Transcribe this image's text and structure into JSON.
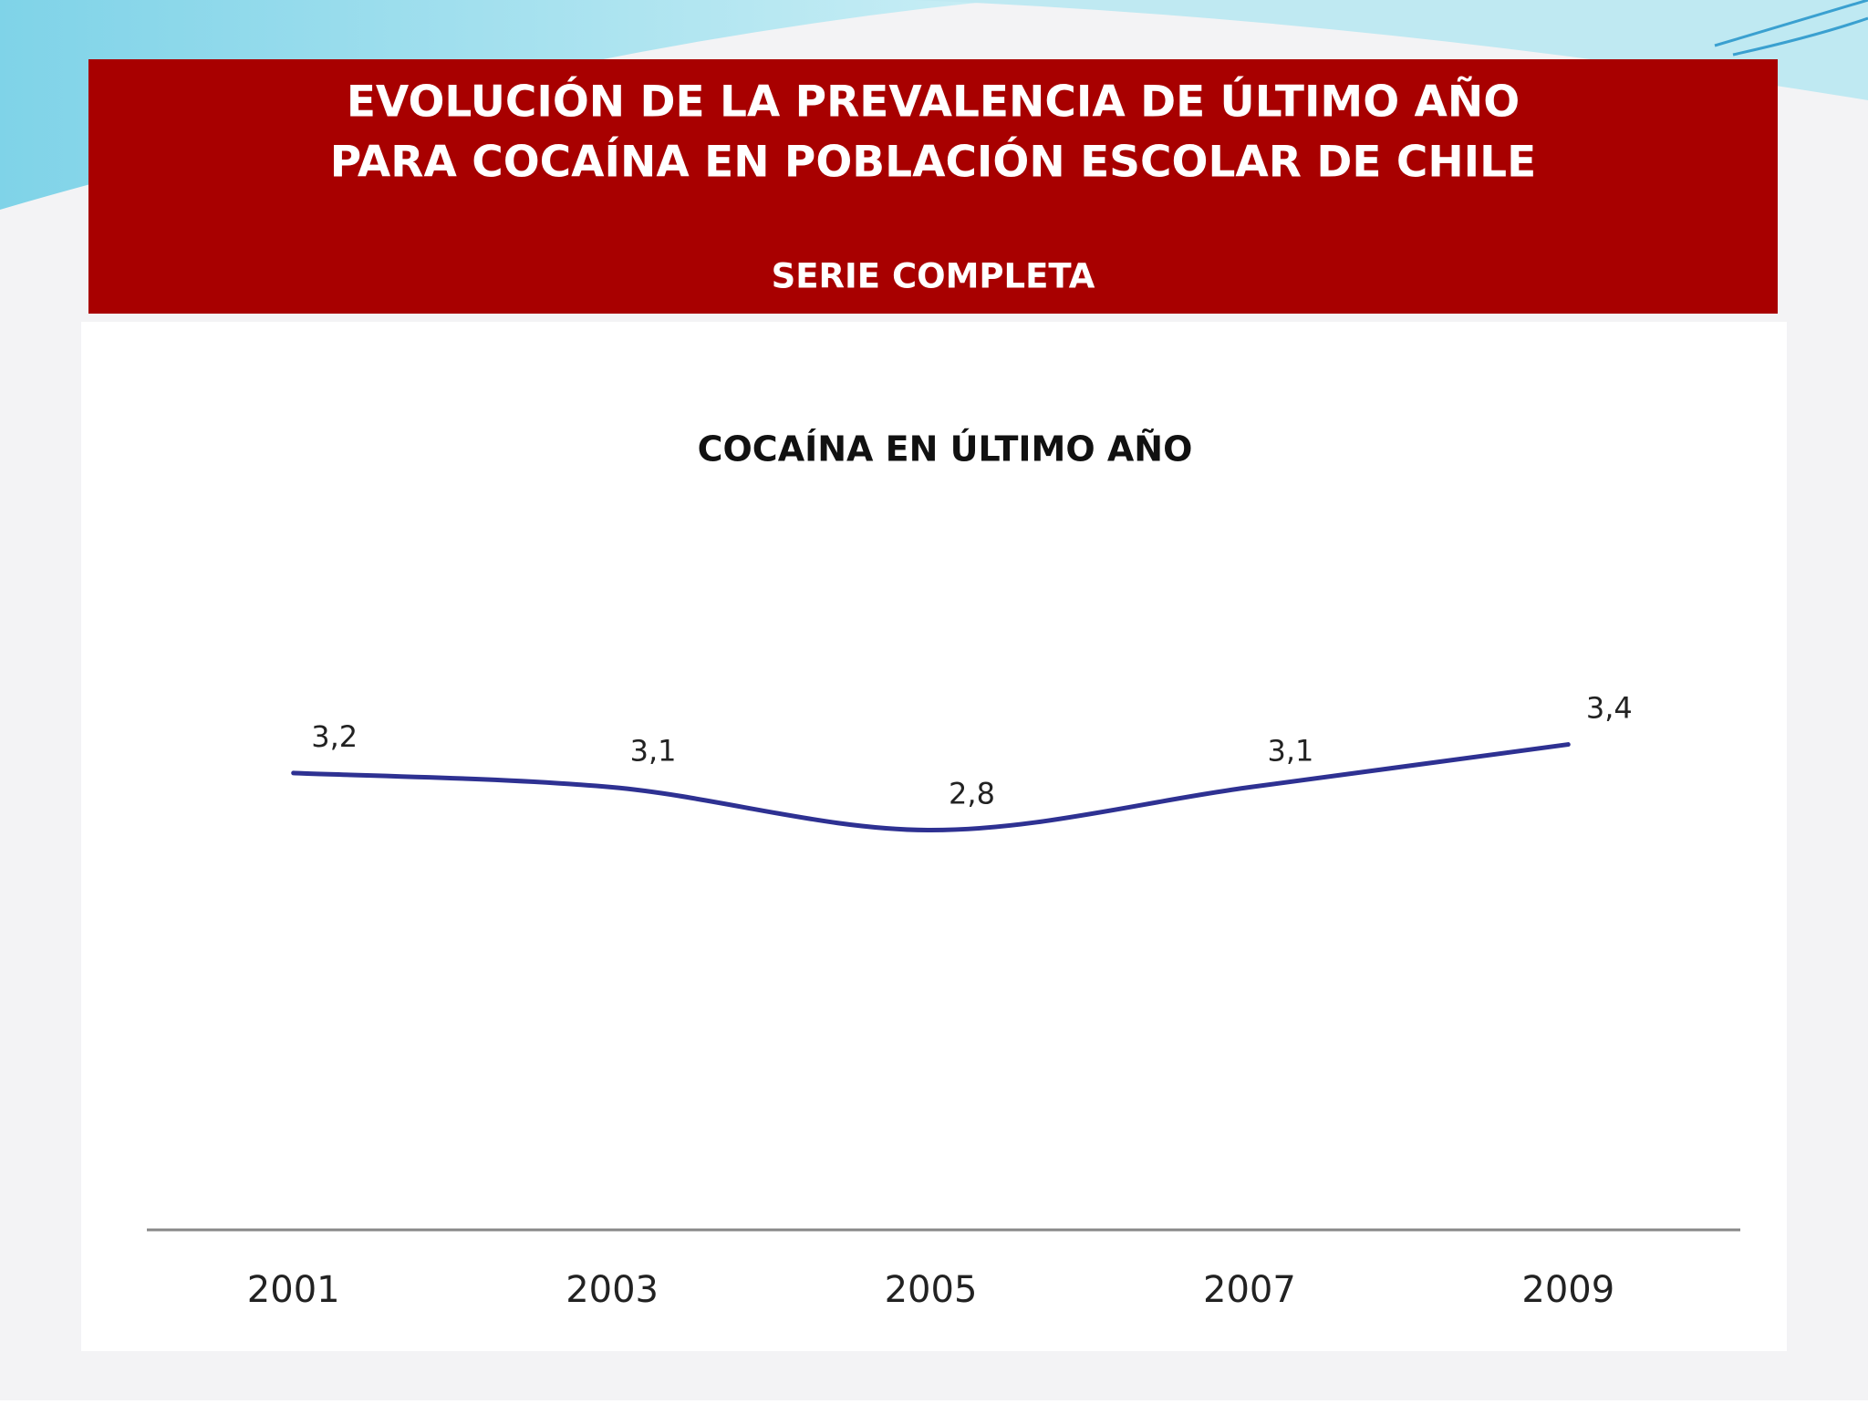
{
  "chart_data": {
    "type": "line",
    "title_lines": [
      "EVOLUCIÓN DE LA PREVALENCIA DE ÚLTIMO AÑO",
      "PARA COCAÍNA EN POBLACIÓN ESCOLAR DE CHILE"
    ],
    "subtitle": "SERIE COMPLETA",
    "chart_title": "COCAÍNA EN ÚLTIMO AÑO",
    "categories": [
      "2001",
      "2003",
      "2005",
      "2007",
      "2009"
    ],
    "series": [
      {
        "name": "Cocaína",
        "color": "#2e3192",
        "values": [
          3.2,
          3.1,
          2.8,
          3.1,
          3.4
        ],
        "value_labels": [
          "3,2",
          "3,1",
          "2,8",
          "3,1",
          "3,4"
        ]
      }
    ],
    "ylim": [
      0,
      5
    ]
  }
}
